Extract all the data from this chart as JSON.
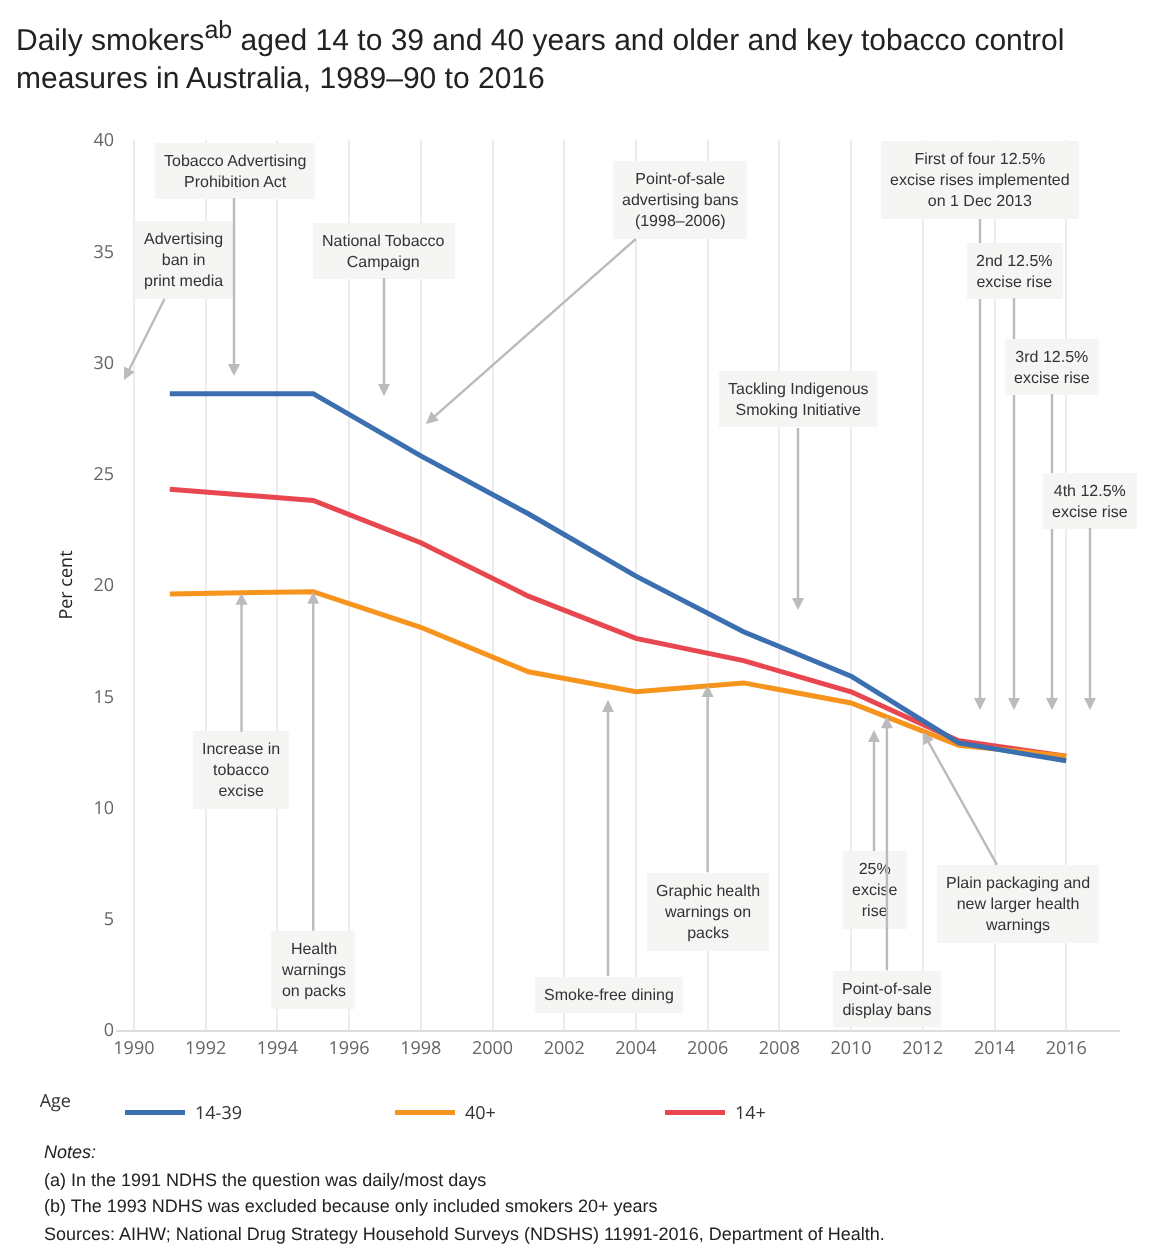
{
  "chart_data": {
    "type": "line",
    "title": "Daily smokers$^{ab}$ aged 14 to 39 and 40 years and older and key tobacco control measures in Australia, 1989–90 to 2016",
    "ylabel": "Per cent",
    "legend_title": "Age",
    "x": [
      1991,
      1995,
      1998,
      2001,
      2004,
      2007,
      2010,
      2013,
      2016
    ],
    "series": [
      {
        "name": "14-39",
        "color": "#3b6fb0",
        "values": [
          28.6,
          28.6,
          25.8,
          23.2,
          20.4,
          17.9,
          15.9,
          12.9,
          12.1
        ]
      },
      {
        "name": "40+",
        "color": "#f7941d",
        "values": [
          19.6,
          19.7,
          18.1,
          16.1,
          15.2,
          15.6,
          14.7,
          12.8,
          12.3
        ]
      },
      {
        "name": "14+",
        "color": "#e8474f",
        "values": [
          24.3,
          23.8,
          21.9,
          19.5,
          17.6,
          16.6,
          15.2,
          13.0,
          12.3
        ]
      }
    ],
    "xlim": [
      1989.5,
      2017.5
    ],
    "xticks": [
      1990,
      1992,
      1994,
      1996,
      1998,
      2000,
      2002,
      2004,
      2006,
      2008,
      2010,
      2012,
      2014,
      2016
    ],
    "ylim": [
      0,
      40
    ],
    "yticks": [
      0,
      5,
      10,
      15,
      20,
      25,
      30,
      35,
      40
    ],
    "grid": "x",
    "legend": "bottom",
    "annotations": [
      "Advertising\nban in\nprint media",
      "Tobacco Advertising\nProhibition Act",
      "National Tobacco\nCampaign",
      "Point-of-sale\nadvertising bans\n(1998–2006)",
      "Tackling Indigenous\nSmoking Initiative",
      "First of four 12.5%\nexcise rises implemented\non 1 Dec 2013",
      "2nd 12.5%\nexcise rise",
      "3rd 12.5%\nexcise rise",
      "4th 12.5%\nexcise rise",
      {
        "text": "Increase in\ntobacco\nexcise",
        "x": 1993,
        "y": 19.65
      },
      {
        "text": "Health\nwarnings\non packs",
        "x": 1995,
        "y": 19.7
      },
      "Smoke-free dining",
      {
        "text": "Graphic health\nwarnings on\npacks",
        "x": 2006,
        "y": 15.5
      },
      "25%\nexcise\nrise",
      {
        "text": "Point-of-sale\ndisplay bans",
        "x": 2011,
        "y": 14.1
      },
      {
        "text": "Plain packaging and\nnew larger health\nwarnings",
        "x": 2012,
        "y": 13.4
      },
      "Notes:",
      "(a) In the 1991 NDHS the question was daily/most days",
      "(b) The 1993 NDHS was excluded because only included smokers 20+ years",
      "Sources: AIHW; National Drug Strategy Household Surveys (NDSHS) 11991-2016, Department of Health."
    ]
  }
}
